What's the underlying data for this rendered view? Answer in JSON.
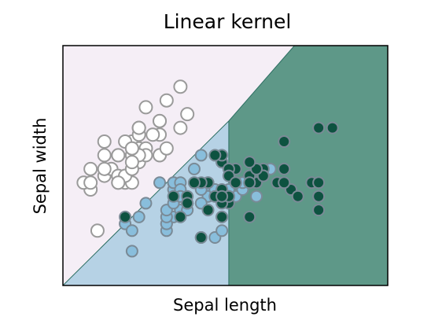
{
  "chart_data": {
    "type": "scatter",
    "title": "Linear kernel",
    "xlabel": "Sepal length",
    "ylabel": "Sepal width",
    "xlim": [
      4.0,
      8.7
    ],
    "ylim": [
      1.5,
      5.0
    ],
    "xticks": false,
    "yticks": false,
    "grid": false,
    "background": "#f5eef6",
    "regions": [
      {
        "class": 0,
        "color": "#f5eef6"
      },
      {
        "class": 1,
        "color": "#b6d2e5"
      },
      {
        "class": 2,
        "color": "#5e9888"
      }
    ],
    "boundaries": [
      {
        "between": [
          0,
          1
        ],
        "points": [
          [
            4.0,
            1.5
          ],
          [
            6.4,
            3.9
          ]
        ]
      },
      {
        "between": [
          0,
          2
        ],
        "points": [
          [
            6.4,
            3.9
          ],
          [
            7.35,
            5.0
          ]
        ]
      },
      {
        "between": [
          1,
          2
        ],
        "points": [
          [
            6.4,
            1.5
          ],
          [
            6.4,
            3.9
          ]
        ]
      }
    ],
    "series": [
      {
        "class": 0,
        "marker": "hollow-circle",
        "fill": "#ffffff",
        "stroke": "#9a9a9a",
        "points": [
          [
            5.1,
            3.5
          ],
          [
            4.9,
            3.0
          ],
          [
            4.7,
            3.2
          ],
          [
            4.6,
            3.1
          ],
          [
            5.0,
            3.6
          ],
          [
            5.4,
            3.9
          ],
          [
            4.6,
            3.4
          ],
          [
            5.0,
            3.4
          ],
          [
            4.4,
            2.9
          ],
          [
            4.9,
            3.1
          ],
          [
            5.4,
            3.7
          ],
          [
            4.8,
            3.4
          ],
          [
            4.8,
            3.0
          ],
          [
            4.3,
            3.0
          ],
          [
            5.8,
            4.0
          ],
          [
            5.7,
            4.4
          ],
          [
            5.4,
            3.9
          ],
          [
            5.1,
            3.5
          ],
          [
            5.7,
            3.8
          ],
          [
            5.1,
            3.8
          ],
          [
            5.4,
            3.4
          ],
          [
            5.1,
            3.7
          ],
          [
            4.6,
            3.6
          ],
          [
            5.1,
            3.3
          ],
          [
            4.8,
            3.4
          ],
          [
            5.0,
            3.0
          ],
          [
            5.0,
            3.4
          ],
          [
            5.2,
            3.5
          ],
          [
            5.2,
            3.4
          ],
          [
            4.7,
            3.2
          ],
          [
            4.8,
            3.1
          ],
          [
            5.4,
            3.4
          ],
          [
            5.2,
            4.1
          ],
          [
            5.5,
            4.2
          ],
          [
            4.9,
            3.1
          ],
          [
            5.0,
            3.2
          ],
          [
            5.5,
            3.5
          ],
          [
            4.9,
            3.6
          ],
          [
            4.4,
            3.0
          ],
          [
            5.1,
            3.4
          ],
          [
            5.0,
            3.5
          ],
          [
            4.5,
            2.3
          ],
          [
            4.4,
            3.2
          ],
          [
            5.0,
            3.5
          ],
          [
            5.1,
            3.8
          ],
          [
            4.8,
            3.0
          ],
          [
            5.1,
            3.8
          ],
          [
            4.6,
            3.2
          ],
          [
            5.3,
            3.7
          ],
          [
            5.0,
            3.3
          ]
        ]
      },
      {
        "class": 1,
        "marker": "circle",
        "fill": "#89bedc",
        "stroke": "#7a8a96",
        "points": [
          [
            7.0,
            3.2
          ],
          [
            6.4,
            3.2
          ],
          [
            6.9,
            3.1
          ],
          [
            5.5,
            2.3
          ],
          [
            6.5,
            2.8
          ],
          [
            5.7,
            2.8
          ],
          [
            6.3,
            3.3
          ],
          [
            4.9,
            2.4
          ],
          [
            6.6,
            2.9
          ],
          [
            5.2,
            2.7
          ],
          [
            5.0,
            2.0
          ],
          [
            5.9,
            3.0
          ],
          [
            6.0,
            2.2
          ],
          [
            6.1,
            2.9
          ],
          [
            5.6,
            2.9
          ],
          [
            6.7,
            3.1
          ],
          [
            5.6,
            3.0
          ],
          [
            5.8,
            2.7
          ],
          [
            6.2,
            2.2
          ],
          [
            5.6,
            2.5
          ],
          [
            5.9,
            3.2
          ],
          [
            6.1,
            2.8
          ],
          [
            6.3,
            2.5
          ],
          [
            6.1,
            2.8
          ],
          [
            6.4,
            2.9
          ],
          [
            6.6,
            3.0
          ],
          [
            6.8,
            2.8
          ],
          [
            6.7,
            3.0
          ],
          [
            6.0,
            2.9
          ],
          [
            5.7,
            2.6
          ],
          [
            5.5,
            2.4
          ],
          [
            5.5,
            2.4
          ],
          [
            5.8,
            2.7
          ],
          [
            6.0,
            2.7
          ],
          [
            5.4,
            3.0
          ],
          [
            6.0,
            3.4
          ],
          [
            6.7,
            3.1
          ],
          [
            6.3,
            2.3
          ],
          [
            5.6,
            3.0
          ],
          [
            5.5,
            2.5
          ],
          [
            5.5,
            2.6
          ],
          [
            6.1,
            3.0
          ],
          [
            5.8,
            2.6
          ],
          [
            5.0,
            2.3
          ],
          [
            5.6,
            2.7
          ],
          [
            5.7,
            3.0
          ],
          [
            5.7,
            2.9
          ],
          [
            6.2,
            2.9
          ],
          [
            5.1,
            2.5
          ],
          [
            5.7,
            2.8
          ]
        ]
      },
      {
        "class": 2,
        "marker": "circle",
        "fill": "#0d5240",
        "stroke": "#7a8a96",
        "points": [
          [
            6.3,
            3.3
          ],
          [
            5.8,
            2.7
          ],
          [
            7.1,
            3.0
          ],
          [
            6.3,
            2.9
          ],
          [
            6.5,
            3.0
          ],
          [
            7.6,
            3.0
          ],
          [
            4.9,
            2.5
          ],
          [
            7.3,
            2.9
          ],
          [
            6.7,
            2.5
          ],
          [
            7.2,
            3.6
          ],
          [
            6.5,
            3.2
          ],
          [
            6.4,
            2.7
          ],
          [
            6.8,
            3.0
          ],
          [
            5.7,
            2.5
          ],
          [
            5.8,
            2.8
          ],
          [
            6.4,
            3.2
          ],
          [
            6.5,
            3.0
          ],
          [
            7.7,
            3.8
          ],
          [
            7.7,
            2.6
          ],
          [
            6.0,
            2.2
          ],
          [
            6.9,
            3.2
          ],
          [
            5.6,
            2.8
          ],
          [
            7.7,
            2.8
          ],
          [
            6.3,
            2.7
          ],
          [
            6.7,
            3.3
          ],
          [
            7.2,
            3.2
          ],
          [
            6.2,
            2.8
          ],
          [
            6.1,
            3.0
          ],
          [
            6.4,
            2.8
          ],
          [
            7.2,
            3.0
          ],
          [
            7.4,
            2.8
          ],
          [
            7.9,
            3.8
          ],
          [
            6.4,
            2.8
          ],
          [
            6.3,
            2.8
          ],
          [
            6.1,
            2.6
          ],
          [
            7.7,
            3.0
          ],
          [
            6.3,
            3.4
          ],
          [
            6.4,
            3.1
          ],
          [
            6.0,
            3.0
          ],
          [
            6.9,
            3.1
          ],
          [
            6.7,
            3.1
          ],
          [
            6.9,
            3.1
          ],
          [
            5.8,
            2.7
          ],
          [
            6.8,
            3.2
          ],
          [
            6.7,
            3.3
          ],
          [
            6.7,
            3.0
          ],
          [
            6.3,
            2.5
          ],
          [
            6.5,
            3.0
          ],
          [
            6.2,
            3.4
          ],
          [
            5.9,
            3.0
          ]
        ]
      }
    ]
  }
}
